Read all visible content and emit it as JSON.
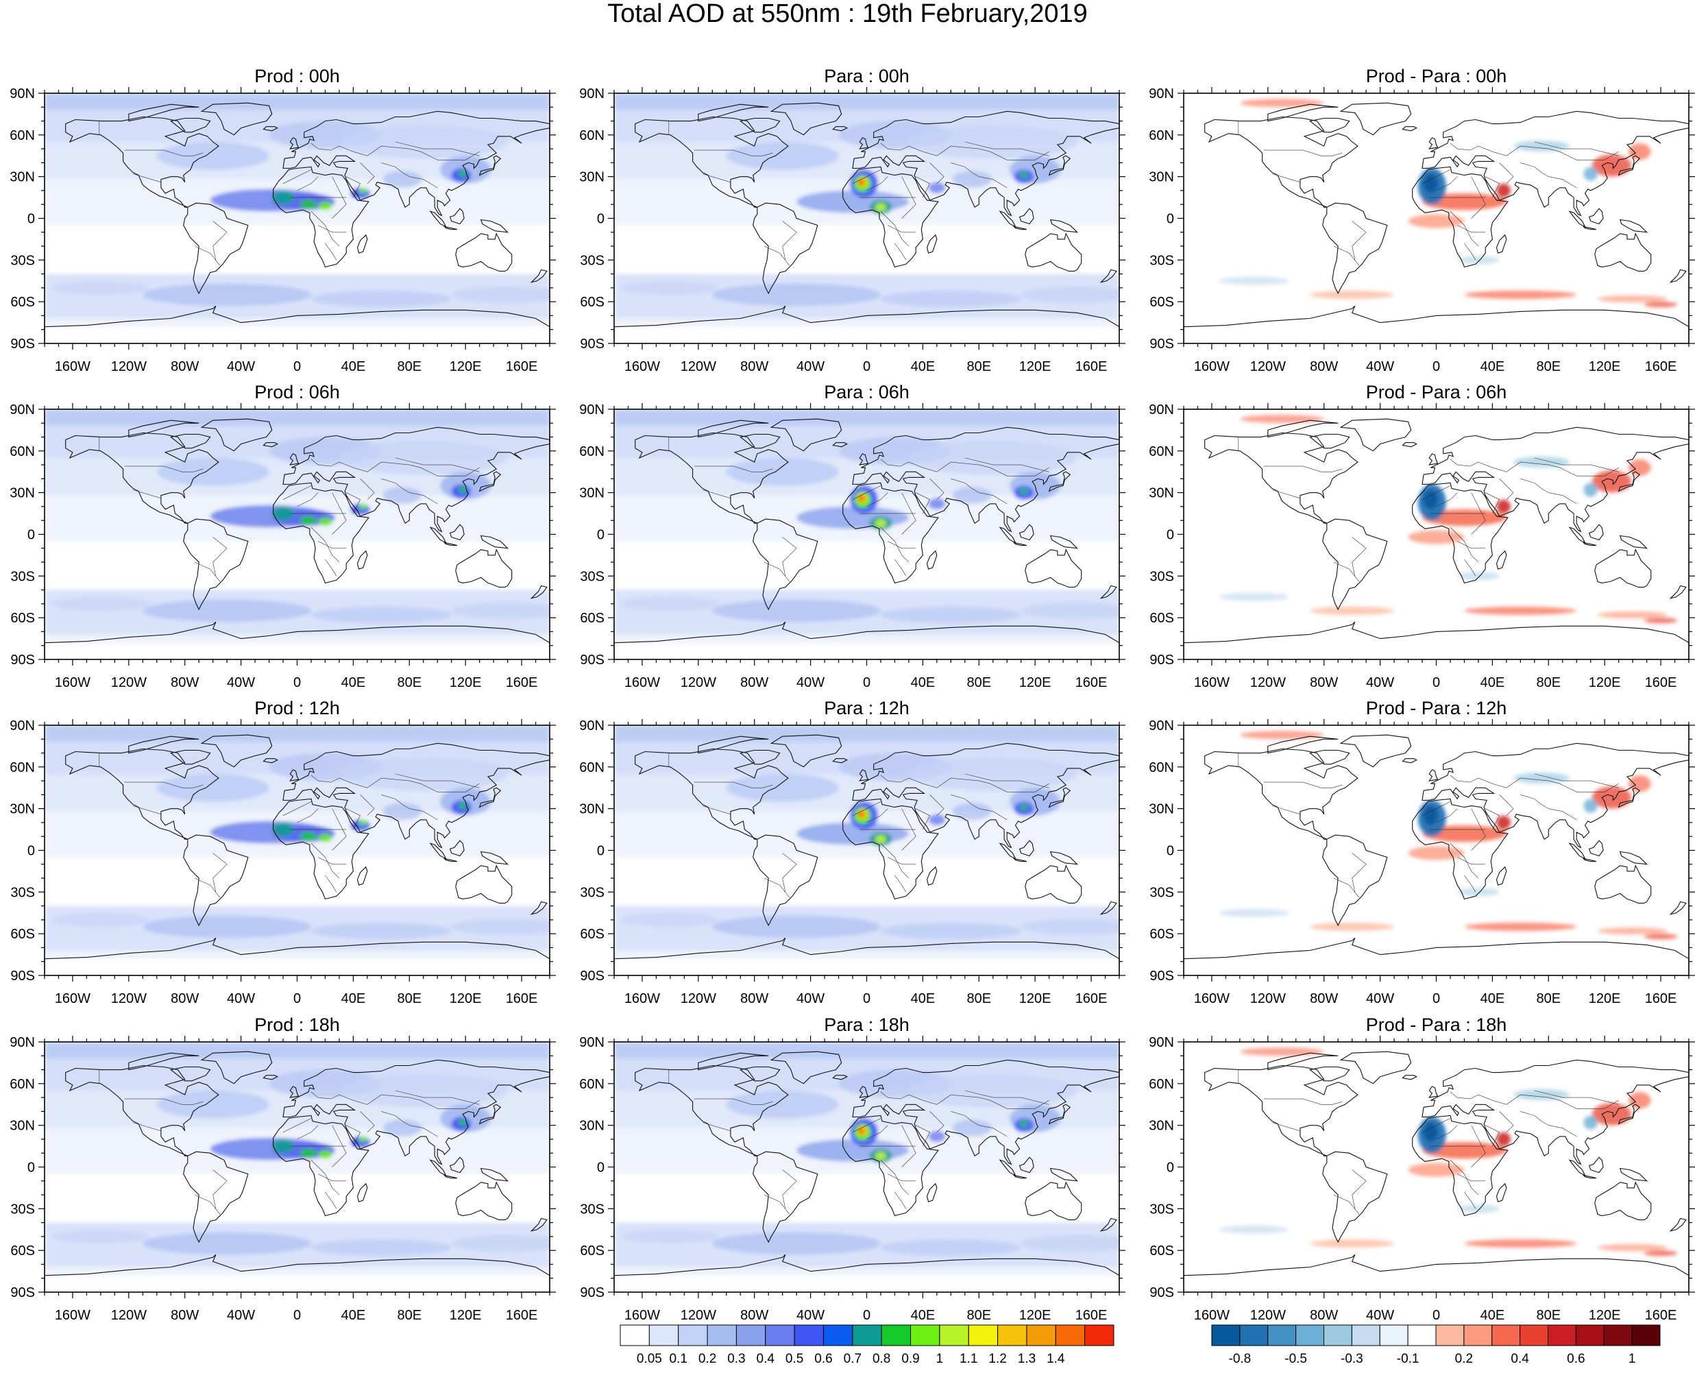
{
  "title": "Total AOD at 550nm : 19th February,2019",
  "lat_labels": [
    "90N",
    "60N",
    "30N",
    "0",
    "30S",
    "60S",
    "90S"
  ],
  "lon_labels": [
    "160W",
    "120W",
    "80W",
    "40W",
    "0",
    "40E",
    "80E",
    "120E",
    "160E"
  ],
  "panels": [
    {
      "title": "Prod : 00h",
      "kind": "aod",
      "variant": "prod"
    },
    {
      "title": "Para : 00h",
      "kind": "aod",
      "variant": "para"
    },
    {
      "title": "Prod - Para : 00h",
      "kind": "diff",
      "variant": "diff"
    },
    {
      "title": "Prod : 06h",
      "kind": "aod",
      "variant": "prod"
    },
    {
      "title": "Para : 06h",
      "kind": "aod",
      "variant": "para"
    },
    {
      "title": "Prod - Para : 06h",
      "kind": "diff",
      "variant": "diff"
    },
    {
      "title": "Prod : 12h",
      "kind": "aod",
      "variant": "prod"
    },
    {
      "title": "Para : 12h",
      "kind": "aod",
      "variant": "para"
    },
    {
      "title": "Prod - Para : 12h",
      "kind": "diff",
      "variant": "diff"
    },
    {
      "title": "Prod : 18h",
      "kind": "aod",
      "variant": "prod"
    },
    {
      "title": "Para : 18h",
      "kind": "aod",
      "variant": "para"
    },
    {
      "title": "Prod - Para : 18h",
      "kind": "diff",
      "variant": "diff"
    }
  ],
  "aod_colorbar": {
    "labels": [
      "0.05",
      "0.1",
      "0.2",
      "0.3",
      "0.4",
      "0.5",
      "0.6",
      "0.7",
      "0.8",
      "0.9",
      "1",
      "1.1",
      "1.2",
      "1.3",
      "1.4"
    ],
    "colors": [
      "#ffffff",
      "#dce6fa",
      "#c3d3f7",
      "#a6bdf2",
      "#8aa2ee",
      "#6b7ef0",
      "#3e55f2",
      "#0a5cf0",
      "#0f9b95",
      "#17c82a",
      "#6ef014",
      "#b8f22a",
      "#f2f20a",
      "#f7c20a",
      "#f59a08",
      "#f76a05",
      "#f52a0a"
    ]
  },
  "diff_colorbar": {
    "labels": [
      "-0.8",
      "-0.5",
      "-0.3",
      "-0.1",
      "0.2",
      "0.4",
      "0.6",
      "1"
    ],
    "colors": [
      "#08589e",
      "#2171b5",
      "#4292c6",
      "#6baed6",
      "#9ecae1",
      "#c6dbef",
      "#e8f4fa",
      "#ffffff",
      "#fcbba1",
      "#fb9a7e",
      "#f6694e",
      "#e8412f",
      "#cb1d22",
      "#a50f15",
      "#7f0710",
      "#5a0208"
    ]
  }
}
